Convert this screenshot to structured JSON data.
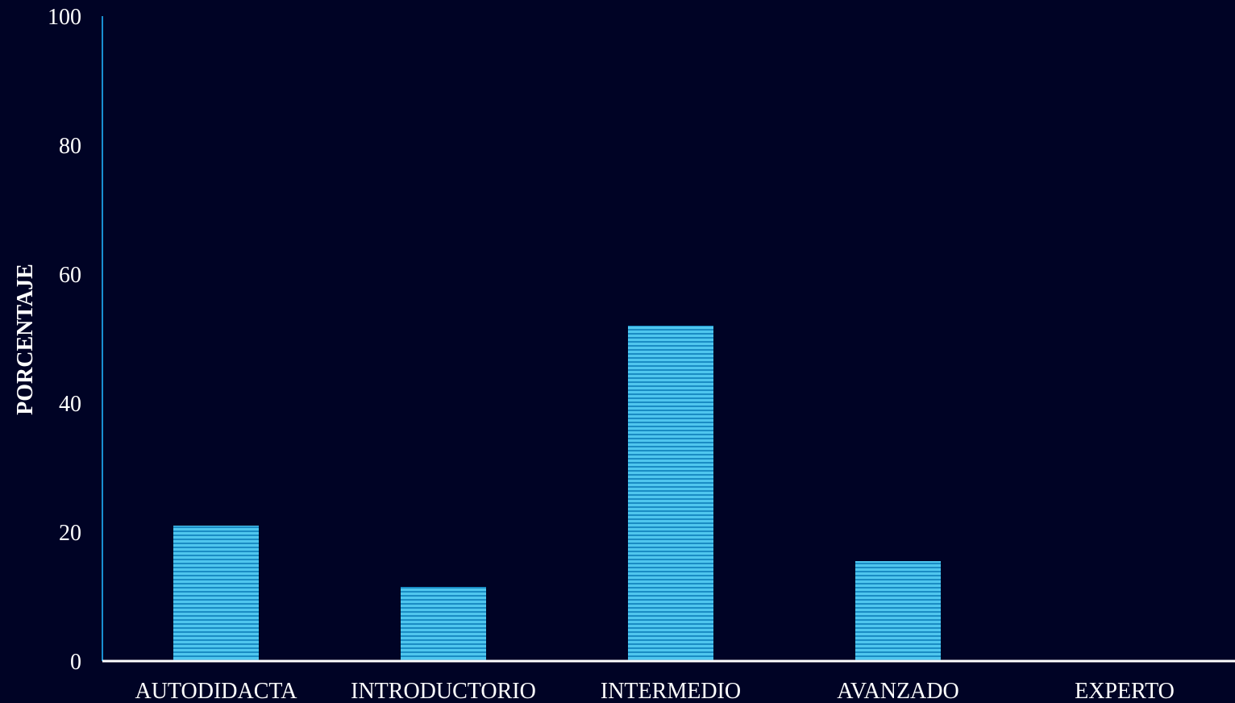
{
  "chart_data": {
    "type": "bar",
    "categories": [
      "AUTODIDACTA",
      "INTRODUCTORIO",
      "INTERMEDIO",
      "AVANZADO",
      "EXPERTO"
    ],
    "values": [
      21,
      11.5,
      52,
      15.5,
      0
    ],
    "title": "",
    "xlabel": "",
    "ylabel": "PORCENTAJE",
    "ylim": [
      0,
      100
    ],
    "yticks": [
      "0",
      "20",
      "40",
      "60",
      "80",
      "100"
    ],
    "grid": false,
    "legend": "none",
    "colors": {
      "background": "#000325",
      "bar_fill": "#4fc6ee",
      "bar_stripe": "#1a8cc4",
      "y_axis": "#1a8fd0",
      "x_axis": "#ffffff",
      "text": "#ffffff"
    }
  }
}
